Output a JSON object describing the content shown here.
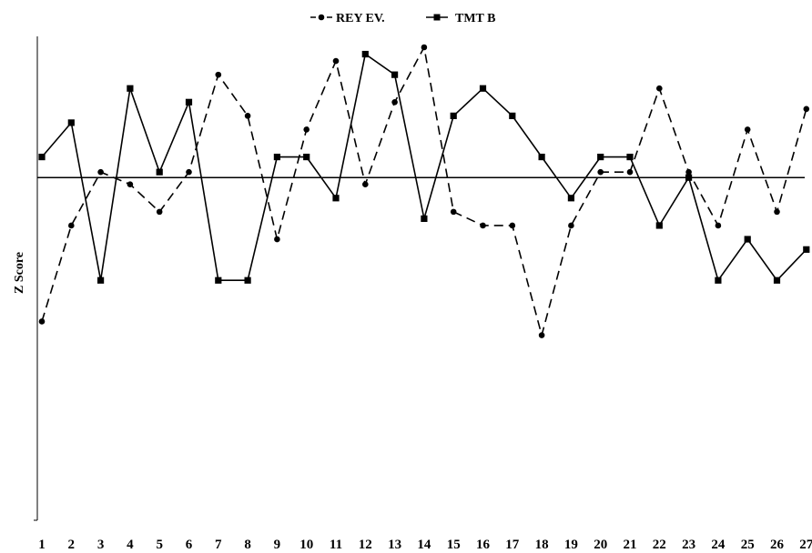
{
  "chart_data": {
    "type": "line",
    "title": "",
    "xlabel": "",
    "ylabel": "Z Score",
    "x": [
      1,
      2,
      3,
      4,
      5,
      6,
      7,
      8,
      9,
      10,
      11,
      12,
      13,
      14,
      15,
      16,
      17,
      18,
      19,
      20,
      21,
      22,
      23,
      24,
      25,
      26,
      27
    ],
    "ylim": [
      -5.0,
      1.9
    ],
    "grid": false,
    "legend_position": "top-center",
    "zero_line": true,
    "series": [
      {
        "name": "REY EV.",
        "line_style": "dashed",
        "marker": "circle",
        "color": "#000000",
        "values": [
          -2.1,
          -0.7,
          0.08,
          -0.1,
          -0.5,
          0.08,
          1.5,
          0.9,
          -0.9,
          0.7,
          1.7,
          -0.1,
          1.1,
          1.9,
          -0.5,
          -0.7,
          -0.7,
          -2.3,
          -0.7,
          0.08,
          0.08,
          1.3,
          0.08,
          -0.7,
          0.7,
          -0.5,
          1.0
        ]
      },
      {
        "name": "TMT B",
        "line_style": "solid",
        "marker": "square",
        "color": "#000000",
        "values": [
          0.3,
          0.8,
          -1.5,
          1.3,
          0.08,
          1.1,
          -1.5,
          -1.5,
          0.3,
          0.3,
          -0.3,
          1.8,
          1.5,
          -0.6,
          0.9,
          1.3,
          0.9,
          0.3,
          -0.3,
          0.3,
          0.3,
          -0.7,
          0.0,
          -1.5,
          -0.9,
          -1.5,
          -1.05
        ]
      }
    ]
  }
}
